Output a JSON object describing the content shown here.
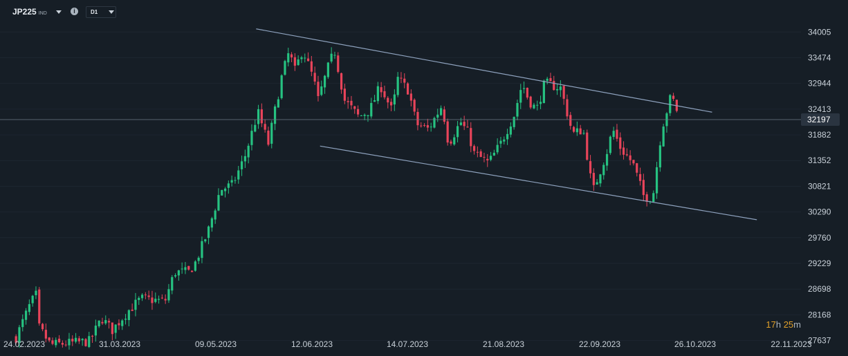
{
  "header": {
    "symbol": "JP225",
    "symbol_type": "IND",
    "info_glyph": "i",
    "timeframe": "D1"
  },
  "timer": {
    "h_value": "17",
    "h_unit": "h",
    "m_value": "25",
    "m_unit": "m"
  },
  "colors": {
    "background": "#161e26",
    "bull": "#26c281",
    "bear": "#e8445a",
    "trendline": "#8fa3bf",
    "axis_text": "#c9d1d9",
    "current_label_bg": "#2a3440"
  },
  "chart_data": {
    "type": "candlestick",
    "x_ticks": [
      "24.02.2023",
      "31.03.2023",
      "09.05.2023",
      "12.06.2023",
      "14.07.2023",
      "21.08.2023",
      "22.09.2023",
      "26.10.2023",
      "22.11.2023"
    ],
    "y_ticks": [
      34005,
      33474,
      32944,
      32413,
      31882,
      31352,
      30821,
      30290,
      29760,
      29229,
      28698,
      28168,
      27637
    ],
    "ylim": [
      27460,
      34380
    ],
    "current_price": 32197,
    "trendlines": [
      {
        "name": "upper",
        "from": [
          0.3198,
          34070
        ],
        "to": [
          0.889,
          32350
        ]
      },
      {
        "name": "lower",
        "from": [
          0.3996,
          31650
        ],
        "to": [
          0.9449,
          30130
        ]
      }
    ],
    "waypoints": [
      [
        0.02,
        27700
      ],
      [
        0.038,
        28400
      ],
      [
        0.046,
        28600
      ],
      [
        0.049,
        27900
      ],
      [
        0.063,
        27550
      ],
      [
        0.112,
        27620
      ],
      [
        0.127,
        28100
      ],
      [
        0.14,
        27850
      ],
      [
        0.16,
        28250
      ],
      [
        0.176,
        28500
      ],
      [
        0.206,
        28450
      ],
      [
        0.218,
        29050
      ],
      [
        0.236,
        29050
      ],
      [
        0.244,
        29250
      ],
      [
        0.26,
        29900
      ],
      [
        0.275,
        30750
      ],
      [
        0.29,
        30850
      ],
      [
        0.305,
        31400
      ],
      [
        0.322,
        32350
      ],
      [
        0.335,
        31700
      ],
      [
        0.352,
        33100
      ],
      [
        0.361,
        33600
      ],
      [
        0.368,
        33200
      ],
      [
        0.378,
        33650
      ],
      [
        0.392,
        33000
      ],
      [
        0.397,
        32600
      ],
      [
        0.412,
        33400
      ],
      [
        0.418,
        33600
      ],
      [
        0.43,
        32600
      ],
      [
        0.448,
        32250
      ],
      [
        0.462,
        32400
      ],
      [
        0.475,
        32900
      ],
      [
        0.49,
        32350
      ],
      [
        0.496,
        33050
      ],
      [
        0.51,
        32800
      ],
      [
        0.52,
        32100
      ],
      [
        0.535,
        32000
      ],
      [
        0.552,
        32500
      ],
      [
        0.56,
        31700
      ],
      [
        0.575,
        32150
      ],
      [
        0.585,
        31900
      ],
      [
        0.592,
        31500
      ],
      [
        0.61,
        31300
      ],
      [
        0.625,
        31700
      ],
      [
        0.642,
        32300
      ],
      [
        0.652,
        32950
      ],
      [
        0.66,
        32600
      ],
      [
        0.67,
        32400
      ],
      [
        0.68,
        32950
      ],
      [
        0.7,
        32850
      ],
      [
        0.715,
        31900
      ],
      [
        0.728,
        32000
      ],
      [
        0.74,
        30700
      ],
      [
        0.758,
        31550
      ],
      [
        0.765,
        32000
      ],
      [
        0.775,
        31600
      ],
      [
        0.79,
        31300
      ],
      [
        0.804,
        30600
      ],
      [
        0.815,
        30600
      ],
      [
        0.826,
        32000
      ],
      [
        0.838,
        32700
      ],
      [
        0.846,
        32350
      ]
    ]
  }
}
